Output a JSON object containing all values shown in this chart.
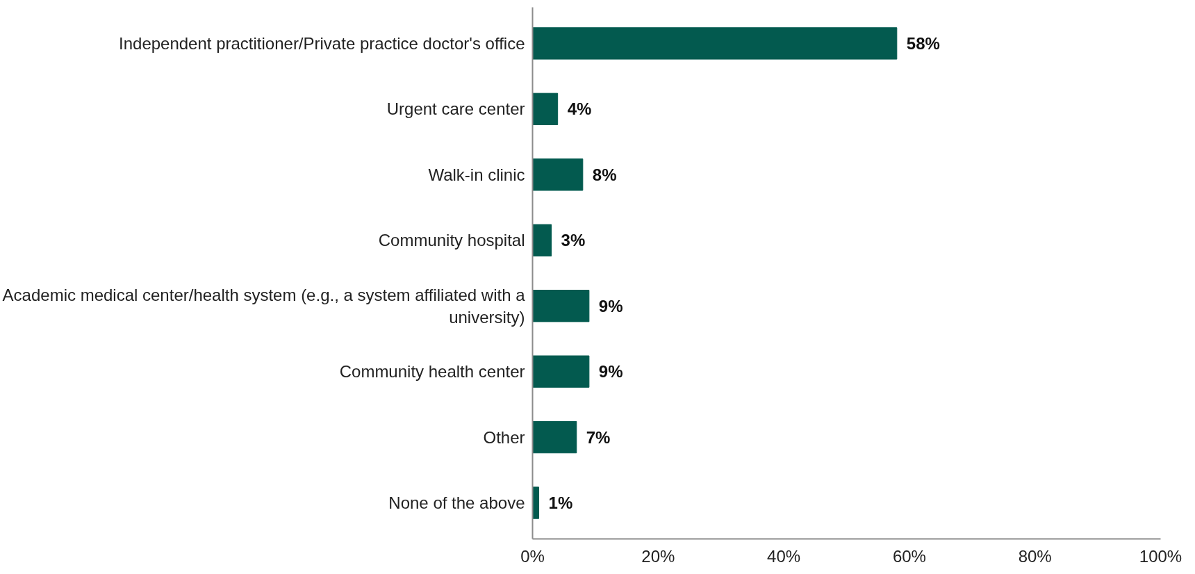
{
  "chart_data": {
    "type": "bar",
    "orientation": "horizontal",
    "categories": [
      "Independent practitioner/Private practice doctor's office",
      "Urgent care center",
      "Walk-in clinic",
      "Community hospital",
      "Academic medical center/health system (e.g., a system affiliated with a university)",
      "Community health center",
      "Other",
      "None of the above"
    ],
    "values": [
      58,
      4,
      8,
      3,
      9,
      9,
      7,
      1
    ],
    "color": "#035a4f",
    "xlim": [
      0,
      100
    ],
    "xticks": [
      {
        "value": 0,
        "label": "0%"
      },
      {
        "value": 20,
        "label": "20%"
      },
      {
        "value": 40,
        "label": "40%"
      },
      {
        "value": 60,
        "label": "60%"
      },
      {
        "value": 80,
        "label": "80%"
      },
      {
        "value": 100,
        "label": "100%"
      }
    ],
    "value_labels": [
      "58%",
      "4%",
      "8%",
      "3%",
      "9%",
      "9%",
      "7%",
      "1%"
    ],
    "grid": false
  }
}
